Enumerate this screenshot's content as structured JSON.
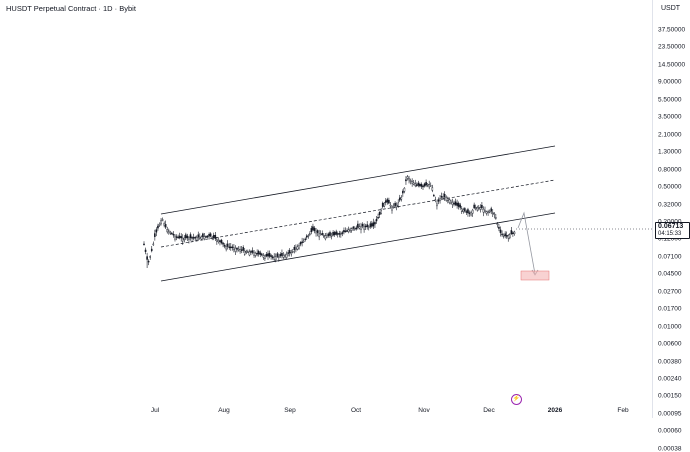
{
  "chart_title": "HUSDT Perpetual Contract · 1D · Bybit",
  "axis": {
    "currency": "USDT",
    "price_labels": [
      "37.50000",
      "23.50000",
      "14.50000",
      "9.00000",
      "5.50000",
      "3.50000",
      "2.10000",
      "1.30000",
      "0.80000",
      "0.50000",
      "0.32000",
      "0.20000",
      "0.12000",
      "0.07100",
      "0.04500",
      "0.02700",
      "0.01700",
      "0.01000",
      "0.00600",
      "0.00380",
      "0.00240",
      "0.00150",
      "0.00095",
      "0.00060",
      "0.00038"
    ],
    "time_labels": [
      "Jul",
      "Aug",
      "Sep",
      "Oct",
      "Nov",
      "Dec",
      "2026",
      "Feb"
    ]
  },
  "last_price": {
    "value": "0.06713",
    "countdown": "04:15:33"
  },
  "event_icon": "lightning-icon",
  "colors": {
    "candle": "#131722",
    "channel_line": "#131722",
    "projection_box": "#f4b4b4",
    "projection_arrow": "#9598a1"
  },
  "chart_data": {
    "type": "candlestick",
    "symbol": "HUSDT",
    "timeframe": "1D",
    "exchange": "Bybit",
    "scale": "log",
    "ylim": [
      0.00038,
      37.5
    ],
    "x": [
      "Jun",
      "Jul",
      "Aug",
      "Sep",
      "Oct",
      "Nov",
      "Dec",
      "Jan 2026",
      "Feb 2026"
    ],
    "close": [
      0.05,
      0.07,
      0.034,
      0.025,
      0.06,
      0.38,
      0.1,
      0.067,
      null
    ],
    "drawings": [
      "ascending parallel channel",
      "channel midline (dashed)",
      "projected price path",
      "target zone"
    ]
  }
}
